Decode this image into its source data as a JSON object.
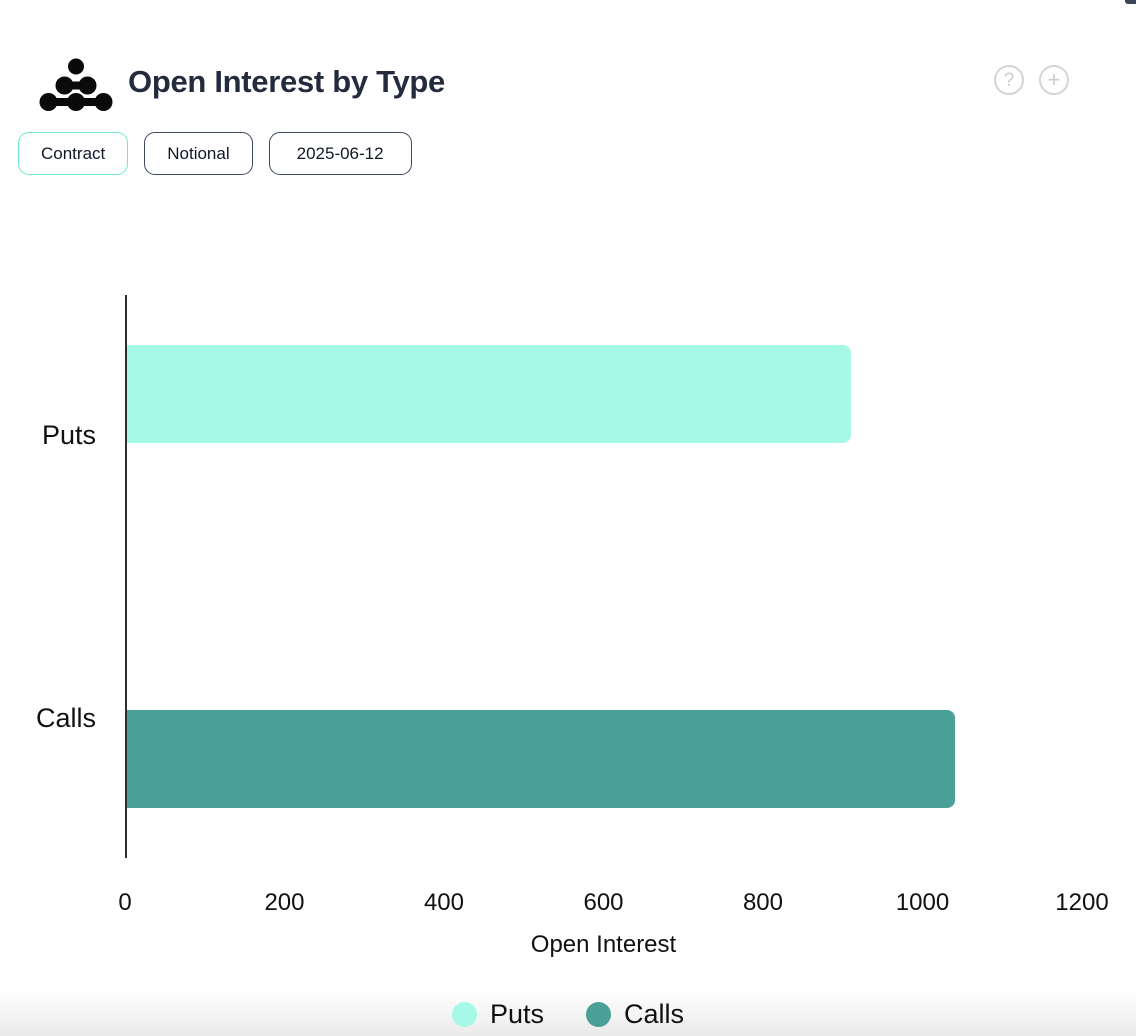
{
  "header": {
    "title": "Open Interest by Type"
  },
  "icons": {
    "help": "?",
    "add": "+"
  },
  "toolbar": {
    "buttons": [
      {
        "label": "Contract",
        "active": true
      },
      {
        "label": "Notional",
        "active": false
      },
      {
        "label": "2025-06-12",
        "active": false
      }
    ]
  },
  "chart_data": {
    "type": "bar",
    "orientation": "horizontal",
    "title": "Open Interest by Type",
    "categories": [
      "Puts",
      "Calls"
    ],
    "series": [
      {
        "name": "Puts",
        "color": "#a6f8e7",
        "values": [
          910,
          null
        ]
      },
      {
        "name": "Calls",
        "color": "#4a9f97",
        "values": [
          null,
          1040
        ]
      }
    ],
    "xlabel": "Open Interest",
    "xlim": [
      0,
      1200
    ],
    "xticks": [
      0,
      200,
      400,
      600,
      800,
      1000,
      1200
    ],
    "grid": false,
    "legend_position": "bottom",
    "bar_colors": {
      "puts": "#a6f8e7",
      "calls": "#4a9f97"
    },
    "accent_colors": {
      "active_button_border": "#6fe9d0",
      "inactive_button_border": "#3d485e"
    }
  }
}
